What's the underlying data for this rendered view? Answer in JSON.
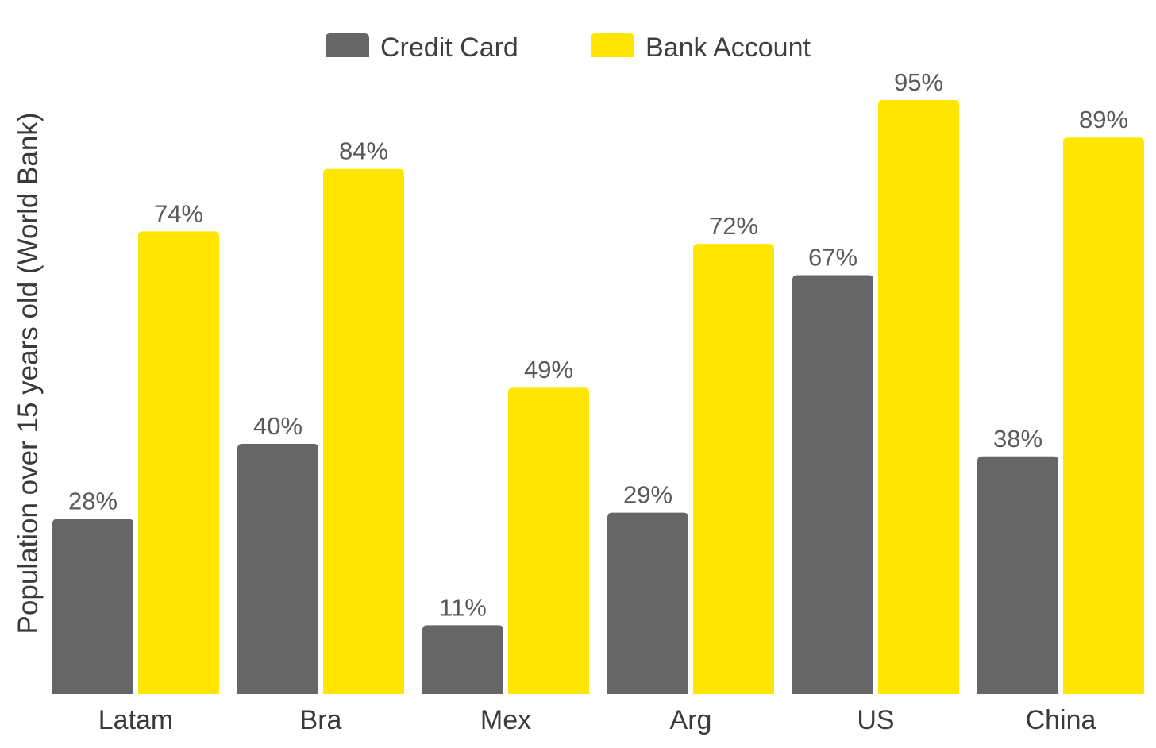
{
  "chart_data": {
    "type": "bar",
    "categories": [
      "Latam",
      "Bra",
      "Mex",
      "Arg",
      "US",
      "China"
    ],
    "series": [
      {
        "name": "Credit Card",
        "values": [
          28,
          40,
          11,
          29,
          67,
          38
        ],
        "labels": [
          "28%",
          "40%",
          "11%",
          "29%",
          "67%",
          "38%"
        ],
        "color": "#666666"
      },
      {
        "name": "Bank Account",
        "values": [
          74,
          84,
          49,
          72,
          95,
          89
        ],
        "labels": [
          "74%",
          "84%",
          "49%",
          "72%",
          "95%",
          "89%"
        ],
        "color": "#FFE600"
      }
    ],
    "ylabel": "Population over 15 years old (World Bank)",
    "xlabel": "",
    "ylim": [
      0,
      100
    ],
    "grid": false,
    "legend_position": "top-center"
  }
}
